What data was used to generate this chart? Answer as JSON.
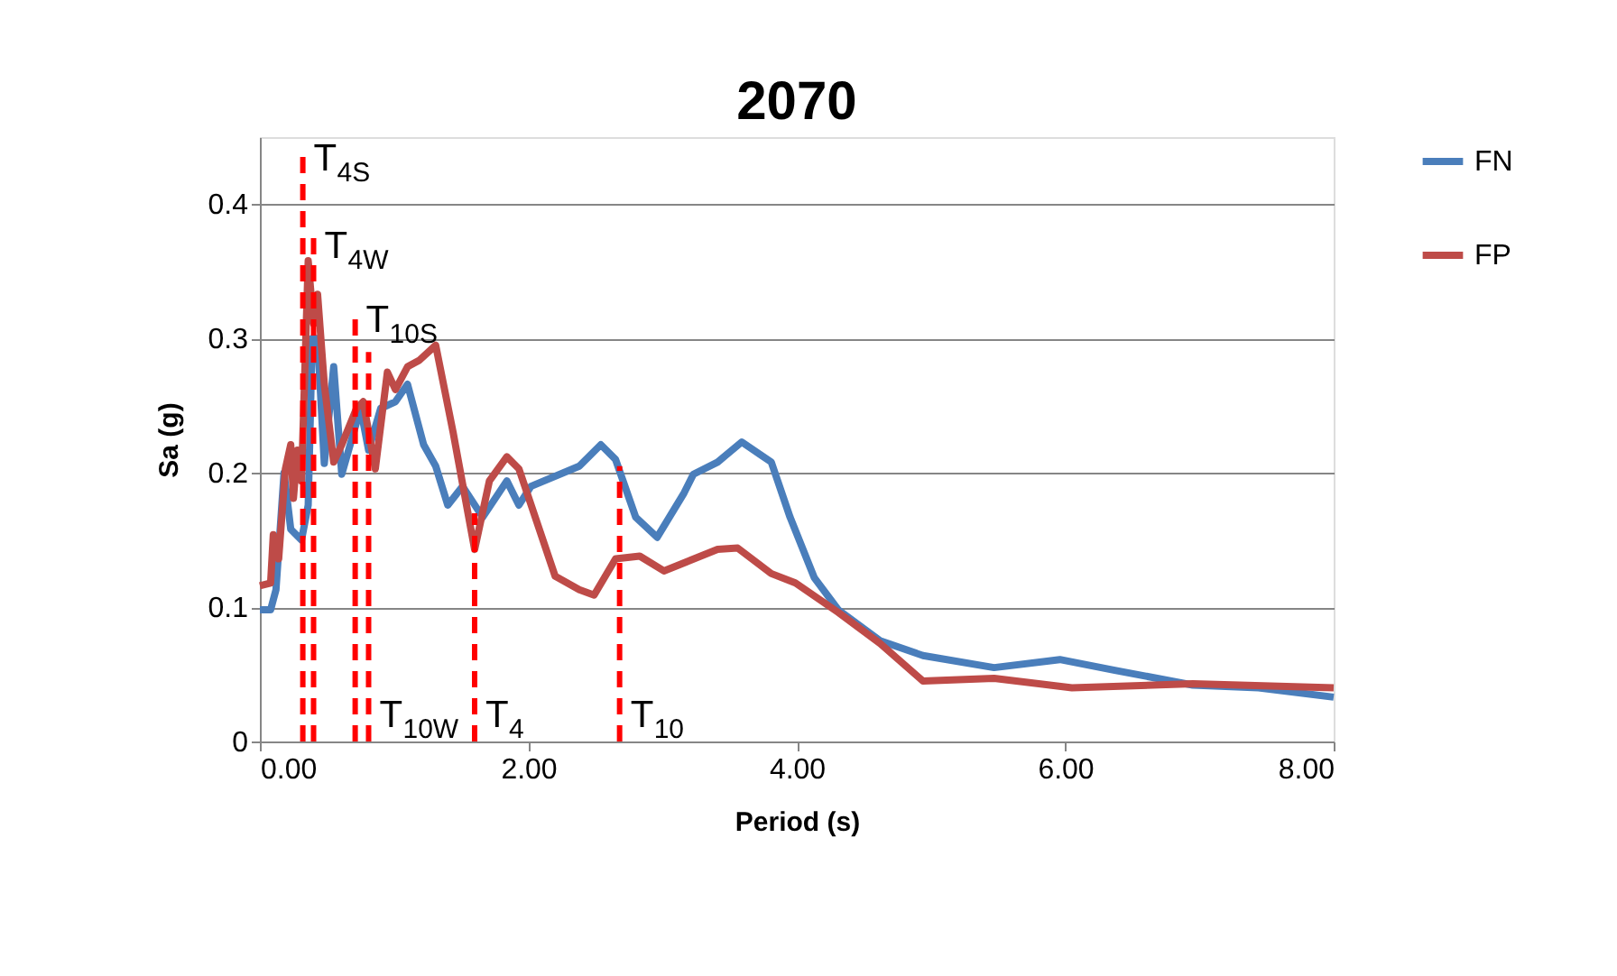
{
  "chart_data": {
    "type": "line",
    "title": "2070",
    "xlabel": "Period (s)",
    "ylabel": "Sa (g)",
    "xlim": [
      0,
      8
    ],
    "ylim": [
      0,
      0.45
    ],
    "xticks": [
      {
        "value": 0,
        "label": "0.00"
      },
      {
        "value": 2,
        "label": "2.00"
      },
      {
        "value": 4,
        "label": "4.00"
      },
      {
        "value": 6,
        "label": "6.00"
      },
      {
        "value": 8,
        "label": "8.00"
      }
    ],
    "yticks": [
      0,
      0.1,
      0.2,
      0.3,
      0.4
    ],
    "grid": "y",
    "legend": "right",
    "marker": "none",
    "series": [
      {
        "name": "FN",
        "color": "#4a7ebb",
        "line_style": "solid",
        "x": [
          0,
          0.08,
          0.12,
          0.18,
          0.23,
          0.31,
          0.36,
          0.39,
          0.43,
          0.48,
          0.55,
          0.61,
          0.75,
          0.81,
          0.9,
          1.01,
          1.1,
          1.22,
          1.31,
          1.4,
          1.51,
          1.66,
          1.84,
          1.93,
          2.02,
          2.38,
          2.54,
          2.65,
          2.8,
          2.96,
          3.16,
          3.23,
          3.41,
          3.59,
          3.81,
          3.95,
          4.13,
          4.31,
          4.62,
          4.94,
          5.47,
          5.96,
          6.37,
          6.95,
          7.44,
          8.0
        ],
        "values": [
          0.098,
          0.098,
          0.113,
          0.2,
          0.158,
          0.15,
          0.176,
          0.3,
          0.3,
          0.207,
          0.279,
          0.199,
          0.248,
          0.217,
          0.248,
          0.253,
          0.266,
          0.221,
          0.205,
          0.176,
          0.19,
          0.167,
          0.194,
          0.176,
          0.19,
          0.205,
          0.221,
          0.21,
          0.167,
          0.152,
          0.185,
          0.199,
          0.208,
          0.223,
          0.208,
          0.167,
          0.122,
          0.098,
          0.075,
          0.064,
          0.055,
          0.061,
          0.053,
          0.042,
          0.04,
          0.033
        ]
      },
      {
        "name": "FP",
        "color": "#be4b48",
        "line_style": "solid",
        "x": [
          0,
          0.08,
          0.1,
          0.14,
          0.19,
          0.23,
          0.25,
          0.28,
          0.31,
          0.36,
          0.4,
          0.43,
          0.48,
          0.55,
          0.61,
          0.72,
          0.77,
          0.86,
          0.95,
          1.01,
          1.1,
          1.19,
          1.31,
          1.44,
          1.6,
          1.71,
          1.84,
          1.93,
          2.2,
          2.38,
          2.49,
          2.65,
          2.83,
          3.01,
          3.41,
          3.56,
          3.81,
          3.99,
          4.31,
          4.62,
          4.94,
          5.47,
          6.05,
          6.95,
          8.0
        ],
        "values": [
          0.116,
          0.118,
          0.154,
          0.136,
          0.203,
          0.221,
          0.181,
          0.217,
          0.194,
          0.358,
          0.311,
          0.333,
          0.266,
          0.208,
          0.221,
          0.248,
          0.253,
          0.203,
          0.275,
          0.262,
          0.279,
          0.284,
          0.295,
          0.23,
          0.143,
          0.194,
          0.212,
          0.203,
          0.123,
          0.113,
          0.109,
          0.136,
          0.138,
          0.127,
          0.143,
          0.144,
          0.125,
          0.118,
          0.096,
          0.073,
          0.045,
          0.047,
          0.04,
          0.043,
          0.04
        ]
      },
      {
        "color": "#ff0000",
        "line_style": "dashed",
        "x": [
          0.32,
          0.32
        ],
        "values": [
          0,
          0.44
        ]
      },
      {
        "color": "#ff0000",
        "line_style": "dashed",
        "x": [
          0.4,
          0.4
        ],
        "values": [
          0,
          0.375
        ]
      },
      {
        "color": "#ff0000",
        "line_style": "dashed",
        "x": [
          0.71,
          0.71
        ],
        "values": [
          0,
          0.32
        ]
      },
      {
        "color": "#ff0000",
        "line_style": "dashed",
        "x": [
          0.81,
          0.81
        ],
        "values": [
          0,
          0.29
        ]
      },
      {
        "color": "#ff0000",
        "line_style": "dashed",
        "x": [
          1.6,
          1.6
        ],
        "values": [
          0,
          0.17
        ]
      },
      {
        "color": "#ff0000",
        "line_style": "dashed",
        "x": [
          2.68,
          2.68
        ],
        "values": [
          0,
          0.205
        ]
      }
    ],
    "annotations": [
      {
        "text": "T$_{4S}$",
        "x": 0.32,
        "y": 0.44
      },
      {
        "text": "T$_{4W}$",
        "x": 0.4,
        "y": 0.375
      },
      {
        "text": "T$_{10S}$",
        "x": 0.71,
        "y": 0.32
      },
      {
        "text": "T$_{10W}$",
        "x": 0.81,
        "y": 0
      },
      {
        "text": "T$_{4}$",
        "x": 1.6,
        "y": 0
      },
      {
        "text": "T$_{10}$",
        "x": 2.68,
        "y": 0
      }
    ]
  }
}
